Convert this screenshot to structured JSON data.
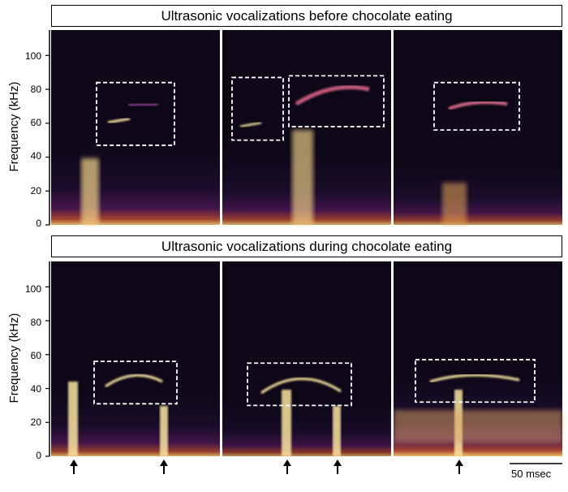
{
  "rows": [
    {
      "title": "Ultrasonic vocalizations before chocolate eating",
      "ylabel": "Frequency  (kHz)",
      "panels": [
        {
          "boxes": [
            {
              "f_low": 47,
              "f_high": 84
            }
          ]
        },
        {
          "boxes": [
            {
              "f_low": 50,
              "f_high": 87
            },
            {
              "f_low": 58,
              "f_high": 88
            }
          ]
        },
        {
          "boxes": [
            {
              "f_low": 56,
              "f_high": 84
            }
          ]
        }
      ]
    },
    {
      "title": "Ultrasonic vocalizations during chocolate eating",
      "ylabel": "Frequency  (kHz)",
      "panels": [
        {
          "boxes": [
            {
              "f_low": 31,
              "f_high": 56
            }
          ]
        },
        {
          "boxes": [
            {
              "f_low": 30,
              "f_high": 55
            }
          ]
        },
        {
          "boxes": [
            {
              "f_low": 32,
              "f_high": 57
            }
          ]
        }
      ]
    }
  ],
  "y_ticks": [
    "0",
    "20",
    "40",
    "60",
    "80",
    "100"
  ],
  "scale_bar_label": "50 msec",
  "colors": {
    "background": "#0d0717",
    "hot": "#fbe6a0",
    "accent": "#6a1f70"
  }
}
